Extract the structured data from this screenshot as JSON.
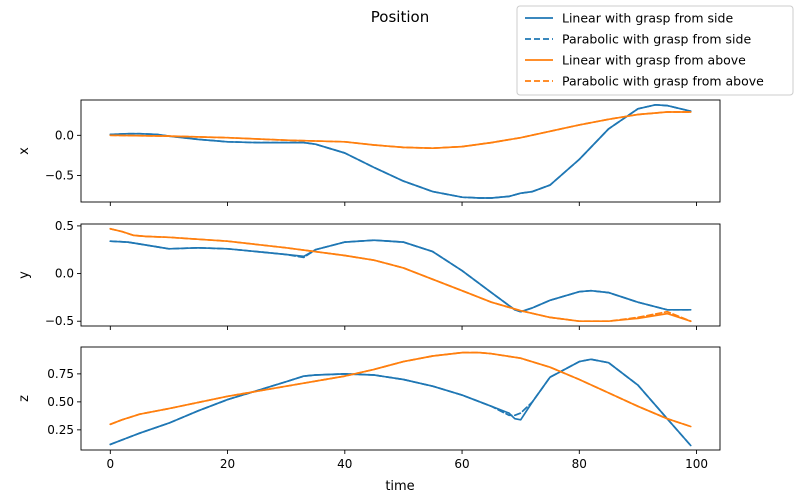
{
  "chart_data": {
    "type": "line",
    "title": "Position",
    "xlabel": "time",
    "xlim": [
      -5,
      104
    ],
    "xticks": [
      0,
      20,
      40,
      60,
      80,
      100
    ],
    "grid": false,
    "legend_placement": "top-right",
    "series_styles": [
      {
        "name": "Linear with grasp from side",
        "color": "#1f77b4",
        "dash": "solid"
      },
      {
        "name": "Parabolic with grasp from side",
        "color": "#1f77b4",
        "dash": "dashed"
      },
      {
        "name": "Linear with grasp from above",
        "color": "#ff7f0e",
        "dash": "solid"
      },
      {
        "name": "Parabolic with grasp from above",
        "color": "#ff7f0e",
        "dash": "dashed"
      }
    ],
    "subplots": [
      {
        "ylabel": "x",
        "ylim": [
          -0.83,
          0.44
        ],
        "yticks": [
          0.0,
          -0.5
        ],
        "ytick_labels": [
          "0.0",
          "−0.5"
        ],
        "series": [
          {
            "name": "Linear with grasp from side",
            "style": 0,
            "x": [
              0,
              3,
              5,
              8,
              10,
              15,
              20,
              25,
              30,
              33,
              35,
              40,
              45,
              50,
              55,
              60,
              63,
              65,
              68,
              70,
              72,
              75,
              80,
              85,
              90,
              93,
              95,
              99
            ],
            "y": [
              0.01,
              0.02,
              0.02,
              0.01,
              -0.01,
              -0.05,
              -0.08,
              -0.09,
              -0.09,
              -0.09,
              -0.11,
              -0.22,
              -0.4,
              -0.57,
              -0.7,
              -0.77,
              -0.78,
              -0.78,
              -0.76,
              -0.72,
              -0.7,
              -0.62,
              -0.3,
              0.08,
              0.33,
              0.38,
              0.37,
              0.3
            ]
          },
          {
            "name": "Parabolic with grasp from side",
            "style": 1,
            "x": [
              0,
              3,
              5,
              8,
              10,
              15,
              20,
              25,
              30,
              33,
              35,
              40,
              45,
              50,
              55,
              60,
              63,
              65,
              68,
              70,
              72,
              75,
              80,
              85,
              90,
              93,
              95,
              99
            ],
            "y": [
              0.01,
              0.02,
              0.02,
              0.01,
              -0.01,
              -0.05,
              -0.08,
              -0.09,
              -0.09,
              -0.09,
              -0.11,
              -0.22,
              -0.4,
              -0.57,
              -0.7,
              -0.77,
              -0.78,
              -0.78,
              -0.76,
              -0.72,
              -0.7,
              -0.62,
              -0.3,
              0.08,
              0.33,
              0.38,
              0.37,
              0.3
            ]
          },
          {
            "name": "Linear with grasp from above",
            "style": 2,
            "x": [
              0,
              10,
              20,
              30,
              40,
              45,
              50,
              55,
              60,
              65,
              70,
              75,
              80,
              85,
              90,
              95,
              99
            ],
            "y": [
              0.0,
              -0.01,
              -0.03,
              -0.06,
              -0.08,
              -0.12,
              -0.15,
              -0.16,
              -0.14,
              -0.09,
              -0.03,
              0.05,
              0.13,
              0.2,
              0.26,
              0.29,
              0.29
            ]
          },
          {
            "name": "Parabolic with grasp from above",
            "style": 3,
            "x": [
              0,
              10,
              20,
              30,
              40,
              45,
              50,
              55,
              60,
              65,
              70,
              75,
              80,
              85,
              90,
              95,
              99
            ],
            "y": [
              0.0,
              -0.01,
              -0.03,
              -0.06,
              -0.08,
              -0.12,
              -0.15,
              -0.16,
              -0.14,
              -0.09,
              -0.03,
              0.05,
              0.13,
              0.2,
              0.26,
              0.29,
              0.29
            ]
          }
        ]
      },
      {
        "ylabel": "y",
        "ylim": [
          -0.55,
          0.52
        ],
        "yticks": [
          0.5,
          0.0,
          -0.5
        ],
        "ytick_labels": [
          "0.5",
          "0.0",
          "−0.5"
        ],
        "series": [
          {
            "name": "Linear with grasp from side",
            "style": 0,
            "x": [
              0,
              3,
              5,
              8,
              10,
              15,
              20,
              25,
              30,
              33,
              35,
              40,
              45,
              50,
              55,
              60,
              65,
              69,
              70,
              72,
              75,
              80,
              82,
              85,
              90,
              95,
              99
            ],
            "y": [
              0.34,
              0.33,
              0.31,
              0.28,
              0.26,
              0.27,
              0.26,
              0.23,
              0.2,
              0.18,
              0.25,
              0.33,
              0.35,
              0.33,
              0.23,
              0.03,
              -0.2,
              -0.38,
              -0.4,
              -0.36,
              -0.28,
              -0.19,
              -0.18,
              -0.2,
              -0.3,
              -0.38,
              -0.38
            ]
          },
          {
            "name": "Parabolic with grasp from side",
            "style": 1,
            "x": [
              0,
              3,
              5,
              8,
              10,
              15,
              20,
              25,
              30,
              33,
              35,
              40,
              45,
              50,
              55,
              60,
              65,
              69,
              70,
              72,
              75,
              80,
              82,
              85,
              90,
              95,
              99
            ],
            "y": [
              0.34,
              0.33,
              0.31,
              0.28,
              0.26,
              0.27,
              0.26,
              0.23,
              0.2,
              0.17,
              0.25,
              0.33,
              0.35,
              0.33,
              0.23,
              0.03,
              -0.2,
              -0.38,
              -0.4,
              -0.36,
              -0.28,
              -0.19,
              -0.18,
              -0.2,
              -0.3,
              -0.38,
              -0.38
            ]
          },
          {
            "name": "Linear with grasp from above",
            "style": 2,
            "x": [
              0,
              2,
              4,
              6,
              10,
              20,
              30,
              40,
              45,
              50,
              55,
              60,
              65,
              70,
              75,
              80,
              85,
              90,
              95,
              99
            ],
            "y": [
              0.47,
              0.44,
              0.4,
              0.39,
              0.38,
              0.34,
              0.27,
              0.19,
              0.14,
              0.06,
              -0.06,
              -0.18,
              -0.3,
              -0.39,
              -0.46,
              -0.5,
              -0.5,
              -0.47,
              -0.42,
              -0.5
            ]
          },
          {
            "name": "Parabolic with grasp from above",
            "style": 3,
            "x": [
              0,
              2,
              4,
              6,
              10,
              20,
              30,
              40,
              45,
              50,
              55,
              60,
              65,
              70,
              75,
              80,
              85,
              90,
              95,
              99
            ],
            "y": [
              0.47,
              0.44,
              0.4,
              0.39,
              0.38,
              0.34,
              0.27,
              0.19,
              0.14,
              0.06,
              -0.06,
              -0.18,
              -0.3,
              -0.39,
              -0.46,
              -0.5,
              -0.5,
              -0.46,
              -0.4,
              -0.5
            ]
          }
        ]
      },
      {
        "ylabel": "z",
        "ylim": [
          0.07,
          0.99
        ],
        "yticks": [
          0.25,
          0.5,
          0.75
        ],
        "ytick_labels": [
          "0.25",
          "0.50",
          "0.75"
        ],
        "series": [
          {
            "name": "Linear with grasp from side",
            "style": 0,
            "x": [
              0,
              5,
              10,
              15,
              20,
              25,
              30,
              33,
              35,
              40,
              45,
              50,
              55,
              60,
              65,
              68,
              69,
              70,
              72,
              75,
              80,
              82,
              85,
              90,
              95,
              99
            ],
            "y": [
              0.12,
              0.22,
              0.31,
              0.42,
              0.52,
              0.6,
              0.68,
              0.73,
              0.74,
              0.75,
              0.74,
              0.7,
              0.64,
              0.56,
              0.46,
              0.4,
              0.35,
              0.34,
              0.5,
              0.72,
              0.86,
              0.88,
              0.85,
              0.65,
              0.35,
              0.11
            ]
          },
          {
            "name": "Parabolic with grasp from side",
            "style": 1,
            "x": [
              0,
              5,
              10,
              15,
              20,
              25,
              30,
              33,
              35,
              40,
              45,
              50,
              55,
              60,
              65,
              68,
              69,
              70,
              72,
              75,
              80,
              82,
              85,
              90,
              95,
              99
            ],
            "y": [
              0.12,
              0.22,
              0.31,
              0.42,
              0.52,
              0.6,
              0.68,
              0.73,
              0.74,
              0.75,
              0.74,
              0.7,
              0.64,
              0.56,
              0.46,
              0.38,
              0.38,
              0.4,
              0.5,
              0.72,
              0.86,
              0.88,
              0.85,
              0.65,
              0.35,
              0.11
            ]
          },
          {
            "name": "Linear with grasp from above",
            "style": 2,
            "x": [
              0,
              2,
              5,
              10,
              20,
              30,
              40,
              45,
              50,
              55,
              60,
              63,
              65,
              70,
              75,
              80,
              85,
              90,
              95,
              99
            ],
            "y": [
              0.3,
              0.34,
              0.39,
              0.44,
              0.55,
              0.64,
              0.73,
              0.79,
              0.86,
              0.91,
              0.94,
              0.94,
              0.93,
              0.89,
              0.81,
              0.7,
              0.58,
              0.46,
              0.35,
              0.28
            ]
          },
          {
            "name": "Parabolic with grasp from above",
            "style": 3,
            "x": [
              0,
              2,
              5,
              10,
              20,
              30,
              40,
              45,
              50,
              55,
              60,
              63,
              65,
              70,
              75,
              80,
              85,
              90,
              95,
              99
            ],
            "y": [
              0.3,
              0.34,
              0.39,
              0.44,
              0.55,
              0.64,
              0.73,
              0.79,
              0.86,
              0.91,
              0.94,
              0.94,
              0.93,
              0.89,
              0.81,
              0.7,
              0.58,
              0.46,
              0.35,
              0.28
            ]
          }
        ]
      }
    ]
  }
}
